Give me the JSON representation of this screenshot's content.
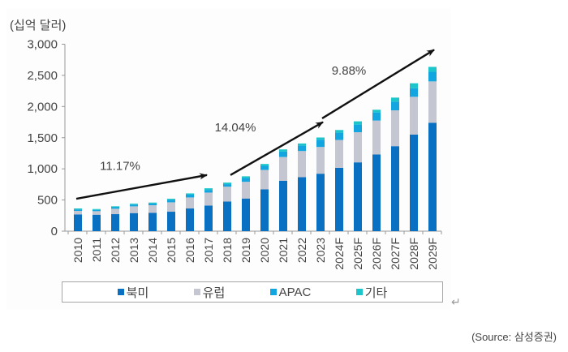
{
  "chart_data": {
    "type": "bar",
    "stacked": true,
    "title": "",
    "unit_label": "(십억 달러)",
    "xlabel": "",
    "ylabel": "(십억 달러)",
    "ylim": [
      0,
      3000
    ],
    "yticks": [
      0,
      500,
      1000,
      1500,
      2000,
      2500,
      3000
    ],
    "ytick_labels": [
      "0",
      "500",
      "1,000",
      "1,500",
      "2,000",
      "2,500",
      "3,000"
    ],
    "grid": false,
    "legend_position": "bottom",
    "categories": [
      "2010",
      "2011",
      "2012",
      "2013",
      "2014",
      "2015",
      "2016",
      "2017",
      "2018",
      "2019",
      "2020",
      "2021",
      "2022",
      "2023",
      "2024F",
      "2025F",
      "2026F",
      "2027F",
      "2028F",
      "2029F"
    ],
    "series": [
      {
        "name": "북미",
        "color": "#0a70c2",
        "values": [
          269,
          264,
          273,
          290,
          295,
          312,
          364,
          411,
          476,
          524,
          671,
          809,
          866,
          922,
          1017,
          1104,
          1230,
          1364,
          1549,
          1740
        ]
      },
      {
        "name": "유럽",
        "color": "#c4c6d2",
        "values": [
          56,
          57,
          87,
          108,
          121,
          151,
          177,
          208,
          238,
          268,
          312,
          382,
          420,
          429,
          446,
          484,
          545,
          575,
          607,
          663
        ]
      },
      {
        "name": "APAC",
        "color": "#12a5df",
        "values": [
          24,
          20,
          24,
          28,
          28,
          40,
          45,
          43,
          40,
          60,
          65,
          86,
          86,
          117,
          117,
          122,
          130,
          139,
          138,
          155
        ]
      },
      {
        "name": "기타",
        "color": "#1cc5c9",
        "values": [
          15,
          14,
          15,
          15,
          15,
          17,
          20,
          26,
          25,
          28,
          30,
          35,
          35,
          35,
          43,
          52,
          43,
          65,
          79,
          78
        ]
      }
    ],
    "annotations": [
      {
        "label": "11.17%",
        "type": "arrow",
        "from_category": "2010",
        "to_category": "2017",
        "from_value": 520,
        "to_value": 900,
        "label_value": 980
      },
      {
        "label": "14.04%",
        "type": "arrow",
        "from_category": "2018",
        "to_category": "2023",
        "from_value": 900,
        "to_value": 1750,
        "label_value": 1600
      },
      {
        "label": "9.88%",
        "type": "arrow",
        "from_category": "2023",
        "to_category": "2029F",
        "from_value": 1810,
        "to_value": 2910,
        "label_value": 2510
      }
    ]
  },
  "legend": {
    "items": [
      {
        "label": "북미",
        "color": "#0a70c2"
      },
      {
        "label": "유럽",
        "color": "#c4c6d2"
      },
      {
        "label": "APAC",
        "color": "#12a5df"
      },
      {
        "label": "기타",
        "color": "#1cc5c9"
      }
    ]
  },
  "source": "(Source:  삼성증권)",
  "return_mark": "↵"
}
